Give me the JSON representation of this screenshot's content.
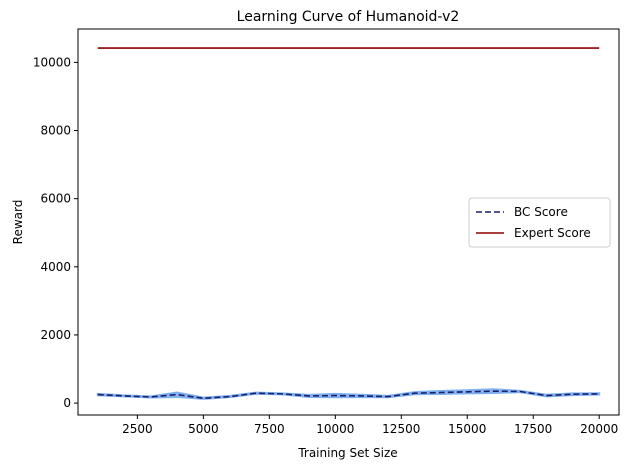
{
  "chart_data": {
    "type": "line",
    "title": "Learning Curve of Humanoid-v2",
    "xlabel": "Training Set Size",
    "ylabel": "Reward",
    "xlim": [
      250,
      20750
    ],
    "ylim": [
      -350,
      10980
    ],
    "xticks": [
      2500,
      5000,
      7500,
      10000,
      12500,
      15000,
      17500,
      20000
    ],
    "yticks": [
      0,
      2000,
      4000,
      6000,
      8000,
      10000
    ],
    "legend_position": "center-right",
    "grid": false,
    "x": [
      1000,
      2000,
      3000,
      4000,
      5000,
      6000,
      7000,
      8000,
      9000,
      10000,
      11000,
      12000,
      13000,
      14000,
      15000,
      16000,
      17000,
      18000,
      19000,
      20000
    ],
    "series": [
      {
        "name": "BC Score",
        "style": "dashed",
        "color": "#1a1f6e",
        "band_color": "#7fb0ef",
        "values": [
          250,
          210,
          180,
          250,
          140,
          190,
          290,
          270,
          210,
          220,
          210,
          190,
          290,
          310,
          330,
          350,
          340,
          220,
          260,
          270
        ],
        "lower": [
          230,
          195,
          165,
          180,
          125,
          175,
          275,
          255,
          180,
          170,
          175,
          170,
          260,
          265,
          285,
          295,
          320,
          195,
          235,
          250
        ],
        "upper": [
          270,
          225,
          195,
          310,
          160,
          210,
          305,
          285,
          240,
          270,
          245,
          210,
          320,
          355,
          375,
          405,
          360,
          245,
          285,
          290
        ]
      },
      {
        "name": "Expert Score",
        "style": "solid",
        "color": "#8b0000",
        "values": [
          10420,
          10420,
          10420,
          10420,
          10420,
          10420,
          10420,
          10420,
          10420,
          10420,
          10420,
          10420,
          10420,
          10420,
          10420,
          10420,
          10420,
          10420,
          10420,
          10420
        ]
      }
    ]
  }
}
